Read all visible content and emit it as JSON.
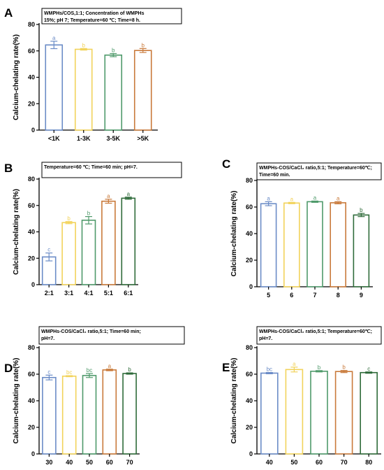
{
  "colors": [
    "#6b8cc7",
    "#f2d35b",
    "#4f9a6b",
    "#c97a3b",
    "#2f6b3a"
  ],
  "chart_data": [
    {
      "type": "bar",
      "panel": "A",
      "condition_lines": [
        "WMPHs/COS,1:1; Concentration of WMPHs",
        "15%; pH 7; Temperature=60 ℃; Time=8 h."
      ],
      "ylabel": "Calcium-chelating rate(%)",
      "ylim": [
        0,
        80
      ],
      "yticks": [
        0,
        20,
        40,
        60,
        80
      ],
      "categories": [
        "<1K",
        "1-3K",
        "3-5K",
        ">5K"
      ],
      "values": [
        64.5,
        61.2,
        56.8,
        60.3
      ],
      "errors": [
        2.8,
        0.6,
        1.2,
        1.5
      ],
      "sig": [
        "a",
        "b",
        "b",
        "b"
      ]
    },
    {
      "type": "bar",
      "panel": "B",
      "condition_lines": [
        "Temperature=60 ℃; Time=60 min; pH=7."
      ],
      "ylabel": "Calcium-chelating rate(%)",
      "ylim": [
        0,
        80
      ],
      "yticks": [
        0,
        20,
        40,
        60,
        80
      ],
      "categories": [
        "2:1",
        "3:1",
        "4:1",
        "5:1",
        "6:1"
      ],
      "values": [
        21.0,
        47.0,
        48.8,
        63.2,
        65.5
      ],
      "errors": [
        3.0,
        0.8,
        2.8,
        1.5,
        0.8
      ],
      "sig": [
        "c",
        "b",
        "b",
        "a",
        "a"
      ]
    },
    {
      "type": "bar",
      "panel": "C",
      "condition_lines": [
        "WMPHs-COS/CaCl₂ ratio,5:1; Temperature=60℃;",
        "Time=60 min."
      ],
      "ylabel": "Calcium-chelating rate(%)",
      "ylim": [
        0,
        80
      ],
      "yticks": [
        0,
        20,
        40,
        60,
        80
      ],
      "categories": [
        "5",
        "6",
        "7",
        "8",
        "9"
      ],
      "values": [
        62.5,
        63.0,
        64.0,
        63.2,
        54.0
      ],
      "errors": [
        1.5,
        0.5,
        0.5,
        0.8,
        1.2
      ],
      "sig": [
        "a",
        "a",
        "a",
        "a",
        "b"
      ]
    },
    {
      "type": "bar",
      "panel": "D",
      "condition_lines": [
        "WMPHs-COS/CaCl₂ ratio,5:1; Time=60 min;",
        "pH=7."
      ],
      "ylabel": "Calcium-chelating rate(%)",
      "ylim": [
        0,
        80
      ],
      "yticks": [
        0,
        20,
        40,
        60,
        80
      ],
      "categories": [
        "30",
        "40",
        "50",
        "60",
        "70"
      ],
      "values": [
        57.5,
        58.5,
        59.0,
        63.2,
        60.5
      ],
      "errors": [
        1.8,
        0.4,
        1.5,
        0.6,
        0.5
      ],
      "sig": [
        "c",
        "bc",
        "bc",
        "a",
        "b"
      ]
    },
    {
      "type": "bar",
      "panel": "E",
      "condition_lines": [
        "WMPHs-COS/CaCl₂ ratio,5:1; Temperature=60℃;",
        "pH=7."
      ],
      "ylabel": "Calcium-chelating rate(%)",
      "ylim": [
        0,
        80
      ],
      "yticks": [
        0,
        20,
        40,
        60,
        80
      ],
      "categories": [
        "40",
        "50",
        "60",
        "70",
        "80"
      ],
      "values": [
        60.8,
        63.5,
        62.2,
        62.0,
        61.2
      ],
      "errors": [
        0.5,
        1.8,
        0.5,
        0.8,
        0.5
      ],
      "sig": [
        "bc",
        "a",
        "b",
        "b",
        "c"
      ]
    }
  ]
}
